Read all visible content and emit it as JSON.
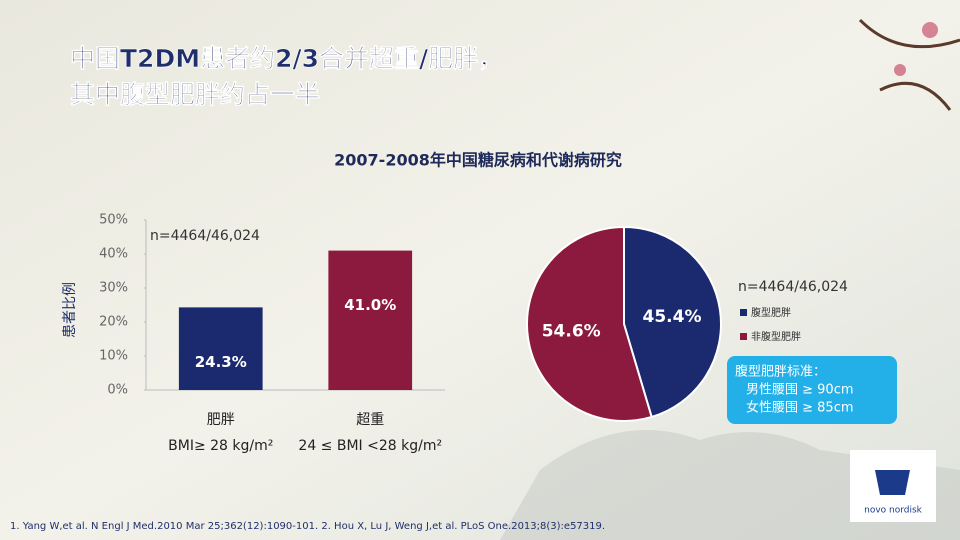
{
  "slide": {
    "title_lines": [
      "中国T2DM患者约2/3合并超重/肥胖，",
      "其中腹型肥胖约占一半"
    ],
    "study_title": "2007-2008年中国糖尿病和代谢病研究",
    "criteria": {
      "heading": "腹型肥胖标准：",
      "lines": [
        "男性腰围 ≥ 90cm",
        "女性腰围 ≥ 85cm"
      ]
    },
    "footnote": "1. Yang W,et al. N Engl J Med.2010 Mar 25;362(12):1090-101. 2. Hou X, Lu J, Weng J,et al. PLoS One.2013;8(3):e57319.",
    "logo": "novo nordisk"
  },
  "chart_data": [
    {
      "type": "bar",
      "y_label": "患者比例",
      "annotation": "n=4464/46,024",
      "categories": [
        "肥胖",
        "超重"
      ],
      "category_sublabels": [
        "BMI≥ 28 kg/m²",
        "24 ≤ BMI <28 kg/m²"
      ],
      "values": [
        24.3,
        41.0
      ],
      "value_labels": [
        "24.3%",
        "41.0%"
      ],
      "colors": [
        "#1b2a6e",
        "#8c1a3e"
      ],
      "ylim": [
        0,
        50
      ],
      "yticks": [
        {
          "value": 0,
          "label": "0%"
        },
        {
          "value": 10,
          "label": "10%"
        },
        {
          "value": 20,
          "label": "20%"
        },
        {
          "value": 30,
          "label": "30%"
        },
        {
          "value": 40,
          "label": "40%"
        },
        {
          "value": 50,
          "label": "50%"
        }
      ]
    },
    {
      "type": "pie",
      "annotation": "n=4464/46,024",
      "series": [
        {
          "name": "腹型肥胖",
          "color": "#1b2a6e",
          "values": [
            45.4
          ]
        },
        {
          "name": "非腹型肥胖",
          "color": "#8c1a3e",
          "values": [
            54.6
          ]
        }
      ],
      "value_labels": [
        "45.4%",
        "54.6%"
      ]
    }
  ]
}
